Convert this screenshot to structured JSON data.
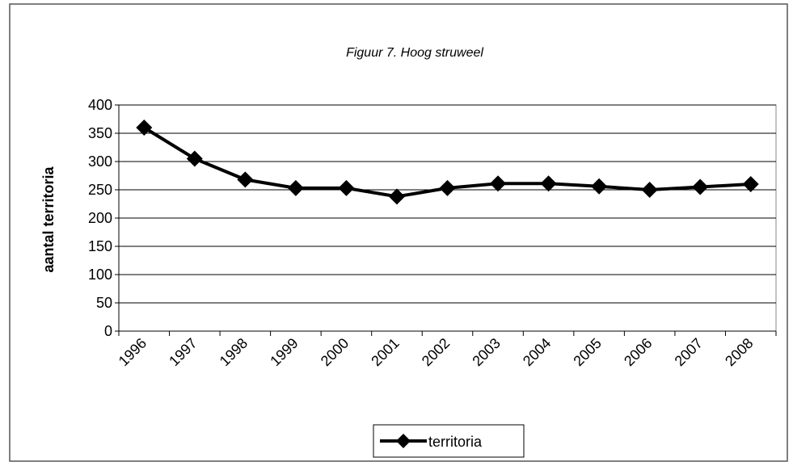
{
  "chart_data": {
    "type": "line",
    "title": "Figuur 7. Hoog struweel",
    "y_label": "aantal territoria",
    "categories": [
      "1996",
      "1997",
      "1998",
      "1999",
      "2000",
      "2001",
      "2002",
      "2003",
      "2004",
      "2005",
      "2006",
      "2007",
      "2008"
    ],
    "series": [
      {
        "name": "territoria",
        "color": "#000000",
        "values": [
          360,
          305,
          268,
          253,
          253,
          238,
          253,
          261,
          261,
          256,
          250,
          255,
          260
        ]
      }
    ],
    "ylim": [
      0,
      400
    ],
    "yticks": [
      0,
      50,
      100,
      150,
      200,
      250,
      300,
      350,
      400
    ],
    "grid": true,
    "legend": "bottom"
  }
}
